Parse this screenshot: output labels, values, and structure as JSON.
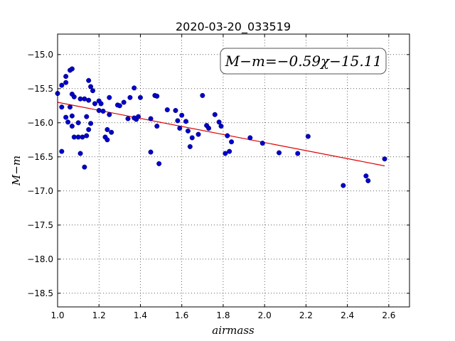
{
  "chart_data": {
    "type": "scatter",
    "title": "2020-03-20_033519",
    "xlabel": "airmass",
    "ylabel": "M−m",
    "annotation": "M−m=−0.59χ−15.11",
    "xlim": [
      1.0,
      2.7
    ],
    "ylim": [
      -18.7,
      -14.7
    ],
    "y_inverted": true,
    "grid": true,
    "xticks": [
      1.0,
      1.2,
      1.4,
      1.6,
      1.8,
      2.0,
      2.2,
      2.4,
      2.6
    ],
    "xtick_labels": [
      "1.0",
      "1.2",
      "1.4",
      "1.6",
      "1.8",
      "2.0",
      "2.2",
      "2.4",
      "2.6"
    ],
    "yticks": [
      -15.0,
      -15.5,
      -16.0,
      -16.5,
      -17.0,
      -17.5,
      -18.0,
      -18.5
    ],
    "ytick_labels": [
      "−15.0",
      "−15.5",
      "−16.0",
      "−16.5",
      "−17.0",
      "−17.5",
      "−18.0",
      "−18.5"
    ],
    "fit": {
      "slope": -0.59,
      "intercept": -15.11,
      "x_range": [
        1.0,
        2.58
      ],
      "color": "#dd0000"
    },
    "point_color": "#0000cc",
    "points": [
      [
        1.0,
        -15.57
      ],
      [
        1.02,
        -15.45
      ],
      [
        1.02,
        -15.77
      ],
      [
        1.02,
        -16.42
      ],
      [
        1.04,
        -15.32
      ],
      [
        1.04,
        -15.41
      ],
      [
        1.04,
        -15.92
      ],
      [
        1.05,
        -15.99
      ],
      [
        1.06,
        -15.77
      ],
      [
        1.06,
        -15.23
      ],
      [
        1.07,
        -15.21
      ],
      [
        1.07,
        -15.58
      ],
      [
        1.07,
        -15.9
      ],
      [
        1.07,
        -16.05
      ],
      [
        1.08,
        -15.62
      ],
      [
        1.08,
        -16.21
      ],
      [
        1.1,
        -16.0
      ],
      [
        1.1,
        -16.21
      ],
      [
        1.11,
        -15.65
      ],
      [
        1.11,
        -16.45
      ],
      [
        1.12,
        -16.21
      ],
      [
        1.13,
        -15.65
      ],
      [
        1.13,
        -16.65
      ],
      [
        1.14,
        -15.91
      ],
      [
        1.14,
        -16.19
      ],
      [
        1.15,
        -15.38
      ],
      [
        1.15,
        -15.67
      ],
      [
        1.15,
        -16.1
      ],
      [
        1.16,
        -16.01
      ],
      [
        1.16,
        -15.47
      ],
      [
        1.17,
        -15.53
      ],
      [
        1.18,
        -15.72
      ],
      [
        1.2,
        -15.68
      ],
      [
        1.2,
        -15.82
      ],
      [
        1.21,
        -15.72
      ],
      [
        1.22,
        -15.83
      ],
      [
        1.23,
        -16.21
      ],
      [
        1.24,
        -16.25
      ],
      [
        1.24,
        -16.1
      ],
      [
        1.25,
        -15.63
      ],
      [
        1.25,
        -15.88
      ],
      [
        1.26,
        -16.14
      ],
      [
        1.29,
        -15.74
      ],
      [
        1.3,
        -15.75
      ],
      [
        1.32,
        -15.7
      ],
      [
        1.34,
        -15.94
      ],
      [
        1.35,
        -15.63
      ],
      [
        1.37,
        -15.49
      ],
      [
        1.37,
        -15.93
      ],
      [
        1.38,
        -15.95
      ],
      [
        1.39,
        -15.91
      ],
      [
        1.4,
        -15.63
      ],
      [
        1.45,
        -15.94
      ],
      [
        1.45,
        -16.43
      ],
      [
        1.47,
        -15.6
      ],
      [
        1.48,
        -15.61
      ],
      [
        1.48,
        -16.05
      ],
      [
        1.49,
        -16.6
      ],
      [
        1.53,
        -15.81
      ],
      [
        1.57,
        -15.82
      ],
      [
        1.58,
        -15.97
      ],
      [
        1.59,
        -16.08
      ],
      [
        1.6,
        -15.89
      ],
      [
        1.62,
        -15.98
      ],
      [
        1.63,
        -16.12
      ],
      [
        1.64,
        -16.35
      ],
      [
        1.65,
        -16.22
      ],
      [
        1.68,
        -16.17
      ],
      [
        1.7,
        -15.6
      ],
      [
        1.72,
        -16.04
      ],
      [
        1.73,
        -16.08
      ],
      [
        1.76,
        -15.88
      ],
      [
        1.78,
        -15.99
      ],
      [
        1.79,
        -16.05
      ],
      [
        1.81,
        -16.45
      ],
      [
        1.82,
        -16.19
      ],
      [
        1.83,
        -16.42
      ],
      [
        1.84,
        -16.28
      ],
      [
        1.93,
        -16.22
      ],
      [
        1.99,
        -16.3
      ],
      [
        2.07,
        -16.44
      ],
      [
        2.16,
        -16.45
      ],
      [
        2.21,
        -16.2
      ],
      [
        2.38,
        -16.92
      ],
      [
        2.49,
        -16.78
      ],
      [
        2.5,
        -16.85
      ],
      [
        2.58,
        -16.53
      ]
    ]
  }
}
